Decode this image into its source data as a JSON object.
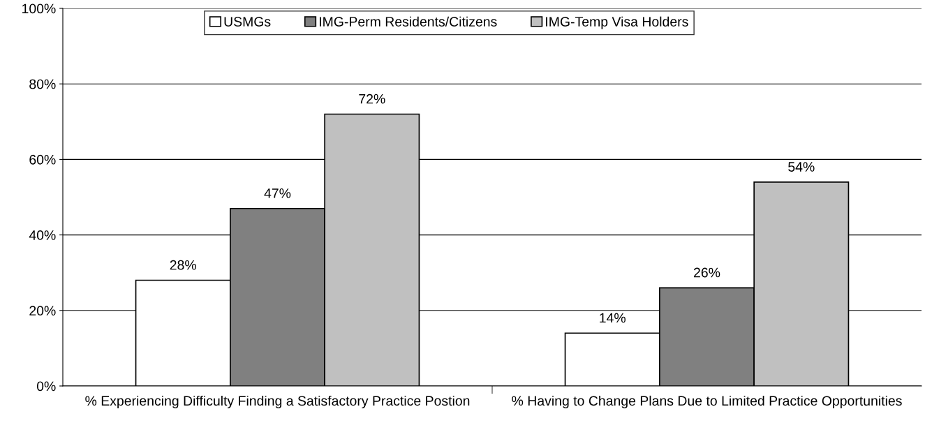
{
  "chart_data": {
    "type": "bar",
    "categories": [
      "% Experiencing Difficulty Finding a Satisfactory Practice Postion",
      "% Having to Change Plans Due to Limited Practice Opportunities"
    ],
    "series": [
      {
        "name": "USMGs",
        "color": "#ffffff",
        "values": [
          28,
          14
        ],
        "value_labels": [
          "28%",
          "14%"
        ]
      },
      {
        "name": "IMG-Perm Residents/Citizens",
        "color": "#808080",
        "values": [
          47,
          26
        ],
        "value_labels": [
          "47%",
          "26%"
        ]
      },
      {
        "name": "IMG-Temp Visa Holders",
        "color": "#c0c0c0",
        "values": [
          72,
          54
        ],
        "value_labels": [
          "72%",
          "54%"
        ]
      }
    ],
    "ylim": [
      0,
      100
    ],
    "yticks": [
      {
        "value": 0,
        "label": "0%"
      },
      {
        "value": 20,
        "label": "20%"
      },
      {
        "value": 40,
        "label": "40%"
      },
      {
        "value": 60,
        "label": "60%"
      },
      {
        "value": 80,
        "label": "80%"
      },
      {
        "value": 100,
        "label": "100%"
      }
    ],
    "grid": "y",
    "legend": "top"
  }
}
